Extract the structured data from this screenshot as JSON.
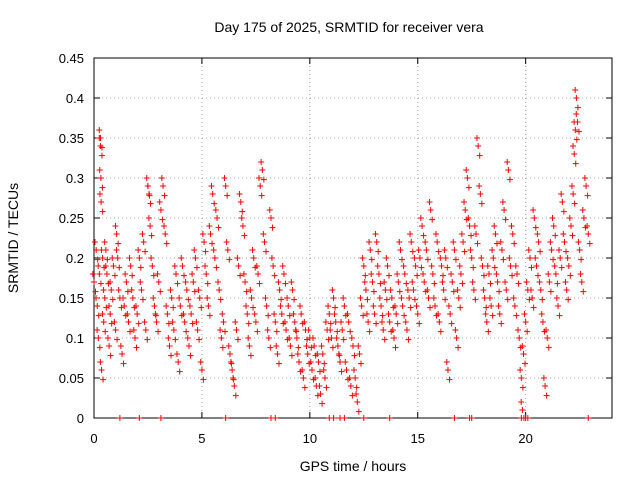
{
  "chart_data": {
    "type": "scatter",
    "title": "Day 175 of 2025, SRMTID for receiver vera",
    "xlabel": "GPS time / hours",
    "ylabel": "SRMTID / TECUs",
    "xlim": [
      0,
      24
    ],
    "ylim": [
      0,
      0.45
    ],
    "xticks": [
      0,
      5,
      10,
      15,
      20
    ],
    "xtick_labels": [
      "0",
      "5",
      "10",
      "15",
      "20"
    ],
    "yticks": [
      0,
      0.05,
      0.1,
      0.15,
      0.2,
      0.25,
      0.3,
      0.35,
      0.4,
      0.45
    ],
    "ytick_labels": [
      "0",
      "0.05",
      "0.1",
      "0.15",
      "0.2",
      "0.25",
      "0.3",
      "0.35",
      "0.4",
      "0.45"
    ],
    "grid": true,
    "marker": "+",
    "series": [
      {
        "name": "SRMTID",
        "color": "#ff0000",
        "points": [
          [
            0.0,
            0.17
          ],
          [
            0.1,
            0.21
          ],
          [
            0.15,
            0.14
          ],
          [
            0.2,
            0.1
          ],
          [
            0.25,
            0.18
          ],
          [
            0.3,
            0.35
          ],
          [
            0.3,
            0.34
          ],
          [
            0.32,
            0.3
          ],
          [
            0.33,
            0.27
          ],
          [
            0.35,
            0.06
          ],
          [
            0.4,
            0.2
          ],
          [
            0.45,
            0.12
          ],
          [
            0.5,
            0.15
          ],
          [
            0.55,
            0.21
          ],
          [
            0.6,
            0.18
          ],
          [
            0.7,
            0.09
          ],
          [
            0.75,
            0.13
          ],
          [
            0.8,
            0.16
          ],
          [
            0.9,
            0.19
          ],
          [
            1.0,
            0.11
          ],
          [
            1.05,
            0.23
          ],
          [
            1.1,
            0.2
          ],
          [
            1.2,
            0.15
          ],
          [
            1.3,
            0.08
          ],
          [
            1.4,
            0.14
          ],
          [
            1.5,
            0.17
          ],
          [
            1.6,
            0.12
          ],
          [
            1.7,
            0.19
          ],
          [
            1.8,
            0.15
          ],
          [
            1.9,
            0.1
          ],
          [
            2.0,
            0.13
          ],
          [
            2.1,
            0.2
          ],
          [
            2.2,
            0.16
          ],
          [
            2.3,
            0.22
          ],
          [
            2.4,
            0.11
          ],
          [
            2.5,
            0.29
          ],
          [
            2.55,
            0.28
          ],
          [
            2.6,
            0.24
          ],
          [
            2.7,
            0.19
          ],
          [
            2.8,
            0.14
          ],
          [
            2.9,
            0.12
          ],
          [
            3.0,
            0.17
          ],
          [
            3.1,
            0.26
          ],
          [
            3.2,
            0.29
          ],
          [
            3.3,
            0.23
          ],
          [
            3.4,
            0.13
          ],
          [
            3.5,
            0.09
          ],
          [
            3.6,
            0.15
          ],
          [
            3.7,
            0.11
          ],
          [
            3.8,
            0.18
          ],
          [
            3.9,
            0.07
          ],
          [
            4.0,
            0.14
          ],
          [
            4.1,
            0.19
          ],
          [
            4.2,
            0.12
          ],
          [
            4.3,
            0.16
          ],
          [
            4.4,
            0.09
          ],
          [
            4.5,
            0.13
          ],
          [
            4.6,
            0.17
          ],
          [
            4.7,
            0.2
          ],
          [
            4.8,
            0.11
          ],
          [
            4.9,
            0.15
          ],
          [
            5.0,
            0.06
          ],
          [
            5.1,
            0.22
          ],
          [
            5.2,
            0.18
          ],
          [
            5.3,
            0.14
          ],
          [
            5.4,
            0.23
          ],
          [
            5.5,
            0.28
          ],
          [
            5.6,
            0.2
          ],
          [
            5.7,
            0.25
          ],
          [
            5.8,
            0.16
          ],
          [
            5.9,
            0.1
          ],
          [
            6.0,
            0.12
          ],
          [
            6.1,
            0.29
          ],
          [
            6.2,
            0.21
          ],
          [
            6.3,
            0.08
          ],
          [
            6.4,
            0.06
          ],
          [
            6.5,
            0.04
          ],
          [
            6.6,
            0.11
          ],
          [
            6.7,
            0.19
          ],
          [
            6.8,
            0.27
          ],
          [
            6.9,
            0.24
          ],
          [
            7.0,
            0.17
          ],
          [
            7.1,
            0.13
          ],
          [
            7.2,
            0.09
          ],
          [
            7.3,
            0.15
          ],
          [
            7.4,
            0.2
          ],
          [
            7.5,
            0.12
          ],
          [
            7.6,
            0.18
          ],
          [
            7.7,
            0.29
          ],
          [
            7.8,
            0.31
          ],
          [
            7.9,
            0.22
          ],
          [
            8.0,
            0.14
          ],
          [
            8.1,
            0.1
          ],
          [
            8.2,
            0.25
          ],
          [
            8.3,
            0.19
          ],
          [
            8.4,
            0.12
          ],
          [
            8.5,
            0.08
          ],
          [
            8.6,
            0.16
          ],
          [
            8.7,
            0.13
          ],
          [
            8.8,
            0.18
          ],
          [
            8.9,
            0.11
          ],
          [
            9.0,
            0.14
          ],
          [
            9.1,
            0.09
          ],
          [
            9.2,
            0.16
          ],
          [
            9.3,
            0.12
          ],
          [
            9.4,
            0.1
          ],
          [
            9.5,
            0.07
          ],
          [
            9.6,
            0.13
          ],
          [
            9.7,
            0.05
          ],
          [
            9.8,
            0.11
          ],
          [
            9.9,
            0.08
          ],
          [
            10.0,
            0.1
          ],
          [
            10.1,
            0.06
          ],
          [
            10.2,
            0.09
          ],
          [
            10.3,
            0.04
          ],
          [
            10.4,
            0.07
          ],
          [
            10.5,
            0.03
          ],
          [
            10.6,
            0.08
          ],
          [
            10.7,
            0.05
          ],
          [
            10.8,
            0.11
          ],
          [
            10.9,
            0.13
          ],
          [
            11.0,
            0.1
          ],
          [
            11.1,
            0.15
          ],
          [
            11.2,
            0.12
          ],
          [
            11.3,
            0.09
          ],
          [
            11.4,
            0.07
          ],
          [
            11.5,
            0.11
          ],
          [
            11.6,
            0.14
          ],
          [
            11.7,
            0.06
          ],
          [
            11.8,
            0.12
          ],
          [
            11.9,
            0.04
          ],
          [
            12.0,
            0.09
          ],
          [
            12.1,
            0.05
          ],
          [
            12.2,
            0.02
          ],
          [
            12.3,
            0.08
          ],
          [
            12.4,
            0.14
          ],
          [
            12.5,
            0.19
          ],
          [
            12.6,
            0.16
          ],
          [
            12.7,
            0.12
          ],
          [
            12.8,
            0.21
          ],
          [
            12.9,
            0.17
          ],
          [
            13.0,
            0.13
          ],
          [
            13.1,
            0.22
          ],
          [
            13.2,
            0.18
          ],
          [
            13.3,
            0.14
          ],
          [
            13.4,
            0.11
          ],
          [
            13.5,
            0.16
          ],
          [
            13.6,
            0.19
          ],
          [
            13.7,
            0.12
          ],
          [
            13.8,
            0.15
          ],
          [
            13.9,
            0.1
          ],
          [
            14.0,
            0.13
          ],
          [
            14.1,
            0.17
          ],
          [
            14.2,
            0.21
          ],
          [
            14.3,
            0.14
          ],
          [
            14.4,
            0.18
          ],
          [
            14.5,
            0.11
          ],
          [
            14.6,
            0.15
          ],
          [
            14.7,
            0.22
          ],
          [
            14.8,
            0.16
          ],
          [
            14.9,
            0.19
          ],
          [
            15.0,
            0.13
          ],
          [
            15.1,
            0.2
          ],
          [
            15.2,
            0.24
          ],
          [
            15.3,
            0.17
          ],
          [
            15.4,
            0.21
          ],
          [
            15.5,
            0.15
          ],
          [
            15.6,
            0.26
          ],
          [
            15.7,
            0.18
          ],
          [
            15.8,
            0.14
          ],
          [
            15.9,
            0.22
          ],
          [
            16.0,
            0.12
          ],
          [
            16.1,
            0.19
          ],
          [
            16.2,
            0.16
          ],
          [
            16.3,
            0.2
          ],
          [
            16.4,
            0.06
          ],
          [
            16.5,
            0.13
          ],
          [
            16.6,
            0.17
          ],
          [
            16.7,
            0.21
          ],
          [
            16.8,
            0.1
          ],
          [
            16.9,
            0.15
          ],
          [
            17.0,
            0.18
          ],
          [
            17.1,
            0.22
          ],
          [
            17.2,
            0.26
          ],
          [
            17.3,
            0.3
          ],
          [
            17.4,
            0.24
          ],
          [
            17.5,
            0.2
          ],
          [
            17.6,
            0.16
          ],
          [
            17.7,
            0.23
          ],
          [
            17.8,
            0.34
          ],
          [
            17.9,
            0.28
          ],
          [
            18.0,
            0.19
          ],
          [
            18.1,
            0.15
          ],
          [
            18.2,
            0.12
          ],
          [
            18.3,
            0.18
          ],
          [
            18.4,
            0.14
          ],
          [
            18.5,
            0.2
          ],
          [
            18.6,
            0.23
          ],
          [
            18.7,
            0.17
          ],
          [
            18.8,
            0.13
          ],
          [
            18.9,
            0.21
          ],
          [
            19.0,
            0.26
          ],
          [
            19.1,
            0.16
          ],
          [
            19.2,
            0.31
          ],
          [
            19.3,
            0.19
          ],
          [
            19.4,
            0.23
          ],
          [
            19.5,
            0.14
          ],
          [
            19.6,
            0.18
          ],
          [
            19.7,
            0.1
          ],
          [
            19.8,
            0.05
          ],
          [
            19.85,
            0.01
          ],
          [
            19.9,
            0.08
          ],
          [
            20.0,
            0.12
          ],
          [
            20.1,
            0.16
          ],
          [
            20.2,
            0.2
          ],
          [
            20.3,
            0.15
          ],
          [
            20.4,
            0.25
          ],
          [
            20.5,
            0.19
          ],
          [
            20.6,
            0.22
          ],
          [
            20.7,
            0.16
          ],
          [
            20.8,
            0.12
          ],
          [
            20.9,
            0.04
          ],
          [
            21.0,
            0.1
          ],
          [
            21.1,
            0.17
          ],
          [
            21.2,
            0.21
          ],
          [
            21.3,
            0.24
          ],
          [
            21.4,
            0.18
          ],
          [
            21.5,
            0.14
          ],
          [
            21.6,
            0.2
          ],
          [
            21.7,
            0.27
          ],
          [
            21.8,
            0.22
          ],
          [
            21.9,
            0.16
          ],
          [
            22.0,
            0.19
          ],
          [
            22.1,
            0.24
          ],
          [
            22.2,
            0.28
          ],
          [
            22.25,
            0.33
          ],
          [
            22.3,
            0.36
          ],
          [
            22.35,
            0.4
          ],
          [
            22.4,
            0.37
          ],
          [
            22.5,
            0.21
          ],
          [
            22.6,
            0.17
          ],
          [
            22.7,
            0.25
          ],
          [
            22.8,
            0.29
          ],
          [
            22.9,
            0.23
          ]
        ]
      }
    ],
    "zero_value_hours": [
      1.2,
      2.1,
      3.1,
      6.1,
      8.2,
      8.4,
      10.9,
      11.1,
      11.4,
      11.6,
      12.5,
      13.7,
      16.7,
      17.4,
      17.5,
      19.8,
      20.0,
      20.1,
      22.9
    ]
  }
}
